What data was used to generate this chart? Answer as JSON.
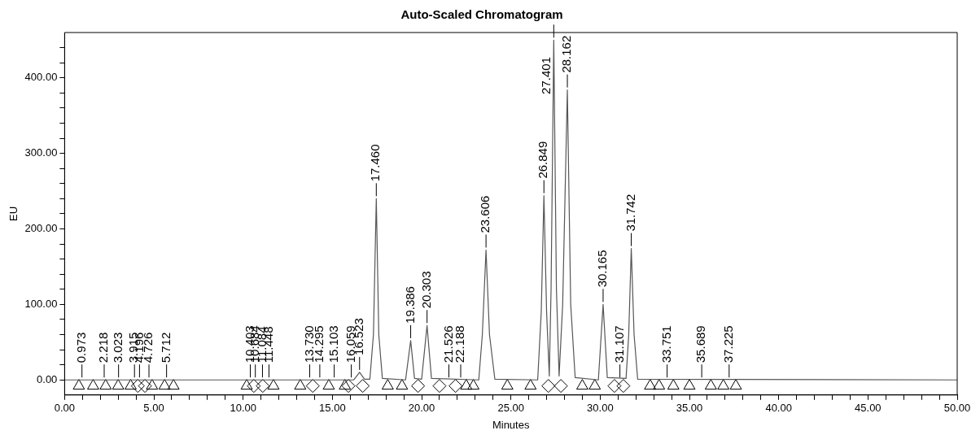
{
  "chart_data": {
    "type": "line",
    "title": "Auto-Scaled Chromatogram",
    "xlabel": "Minutes",
    "ylabel": "EU",
    "xlim": [
      0,
      50
    ],
    "ylim": [
      -20,
      460
    ],
    "xticks": [
      {
        "value": 0,
        "label": "0.00"
      },
      {
        "value": 1,
        "label": null
      },
      {
        "value": 2,
        "label": null
      },
      {
        "value": 3,
        "label": null
      },
      {
        "value": 4,
        "label": null
      },
      {
        "value": 5,
        "label": "5.00"
      },
      {
        "value": 6,
        "label": null
      },
      {
        "value": 7,
        "label": null
      },
      {
        "value": 8,
        "label": null
      },
      {
        "value": 9,
        "label": null
      },
      {
        "value": 10,
        "label": "10.00"
      },
      {
        "value": 11,
        "label": null
      },
      {
        "value": 12,
        "label": null
      },
      {
        "value": 13,
        "label": null
      },
      {
        "value": 14,
        "label": null
      },
      {
        "value": 15,
        "label": "15.00"
      },
      {
        "value": 16,
        "label": null
      },
      {
        "value": 17,
        "label": null
      },
      {
        "value": 18,
        "label": null
      },
      {
        "value": 19,
        "label": null
      },
      {
        "value": 20,
        "label": "20.00"
      },
      {
        "value": 21,
        "label": null
      },
      {
        "value": 22,
        "label": null
      },
      {
        "value": 23,
        "label": null
      },
      {
        "value": 24,
        "label": null
      },
      {
        "value": 25,
        "label": "25.00"
      },
      {
        "value": 26,
        "label": null
      },
      {
        "value": 27,
        "label": null
      },
      {
        "value": 28,
        "label": null
      },
      {
        "value": 29,
        "label": null
      },
      {
        "value": 30,
        "label": "30.00"
      },
      {
        "value": 31,
        "label": null
      },
      {
        "value": 32,
        "label": null
      },
      {
        "value": 33,
        "label": null
      },
      {
        "value": 34,
        "label": null
      },
      {
        "value": 35,
        "label": "35.00"
      },
      {
        "value": 36,
        "label": null
      },
      {
        "value": 37,
        "label": null
      },
      {
        "value": 38,
        "label": null
      },
      {
        "value": 39,
        "label": null
      },
      {
        "value": 40,
        "label": "40.00"
      },
      {
        "value": 41,
        "label": null
      },
      {
        "value": 42,
        "label": null
      },
      {
        "value": 43,
        "label": null
      },
      {
        "value": 44,
        "label": null
      },
      {
        "value": 45,
        "label": "45.00"
      },
      {
        "value": 46,
        "label": null
      },
      {
        "value": 47,
        "label": null
      },
      {
        "value": 48,
        "label": null
      },
      {
        "value": 49,
        "label": null
      },
      {
        "value": 50,
        "label": "50.00"
      }
    ],
    "yticks": [
      {
        "value": 0,
        "label": "0.00"
      },
      {
        "value": 20,
        "label": null
      },
      {
        "value": 40,
        "label": null
      },
      {
        "value": 60,
        "label": null
      },
      {
        "value": 80,
        "label": null
      },
      {
        "value": 100,
        "label": "100.00"
      },
      {
        "value": 120,
        "label": null
      },
      {
        "value": 140,
        "label": null
      },
      {
        "value": 160,
        "label": null
      },
      {
        "value": 180,
        "label": null
      },
      {
        "value": 200,
        "label": "200.00"
      },
      {
        "value": 220,
        "label": null
      },
      {
        "value": 240,
        "label": null
      },
      {
        "value": 260,
        "label": null
      },
      {
        "value": 280,
        "label": null
      },
      {
        "value": 300,
        "label": "300.00"
      },
      {
        "value": 320,
        "label": null
      },
      {
        "value": 340,
        "label": null
      },
      {
        "value": 360,
        "label": null
      },
      {
        "value": 380,
        "label": null
      },
      {
        "value": 400,
        "label": "400.00"
      },
      {
        "value": 420,
        "label": null
      },
      {
        "value": 440,
        "label": null
      }
    ],
    "grid": false,
    "legend": false,
    "series": [
      {
        "color": "#555555",
        "marker": "none",
        "x": [
          0,
          16.2,
          16.523,
          16.8,
          17.1,
          17.3,
          17.46,
          17.6,
          17.8,
          19.1,
          19.386,
          19.6,
          20.0,
          20.303,
          20.55,
          23.2,
          23.4,
          23.606,
          23.8,
          24.1,
          26.5,
          26.7,
          26.849,
          27.0,
          27.15,
          27.25,
          27.401,
          27.55,
          27.7,
          27.9,
          28.162,
          28.35,
          28.6,
          29.9,
          30.165,
          30.4,
          31.45,
          31.6,
          31.742,
          31.9,
          32.1,
          50
        ],
        "values": [
          0,
          0,
          10,
          1,
          1,
          60,
          240,
          60,
          2,
          0,
          52,
          2,
          1,
          72,
          2,
          0,
          60,
          172,
          60,
          1,
          0,
          90,
          244,
          90,
          5,
          120,
          450,
          120,
          5,
          100,
          384,
          100,
          3,
          0,
          100,
          3,
          2,
          60,
          174,
          60,
          1,
          0
        ]
      },
      {
        "type": "scatter",
        "color": "#000000",
        "marker": "triangle",
        "x": [
          0.8,
          1.6,
          2.3,
          3.0,
          3.7,
          4.9,
          5.6,
          6.1,
          10.2,
          11.7,
          13.2,
          14.8,
          15.7,
          18.1,
          18.9,
          22.5,
          22.9,
          24.8,
          26.1,
          29.0,
          29.7,
          32.8,
          33.3,
          34.1,
          35.0,
          36.2,
          36.9,
          37.6
        ],
        "values": [
          -8,
          -8,
          -8,
          -8,
          -8,
          -8,
          -8,
          -8,
          -8,
          -8,
          -8,
          -8,
          -8,
          -8,
          -8,
          -8,
          -8,
          -8,
          -8,
          -8,
          -8,
          -8,
          -8,
          -8,
          -8,
          -8,
          -8,
          -8
        ]
      },
      {
        "type": "scatter",
        "color": "#000000",
        "marker": "diamond",
        "x": [
          4.1,
          4.5,
          10.6,
          11.1,
          13.9,
          15.9,
          16.7,
          19.8,
          21.0,
          21.9,
          27.1,
          27.8,
          30.8,
          31.3
        ],
        "values": [
          -8,
          -8,
          -8,
          -8,
          -8,
          -8,
          -8,
          -8,
          -8,
          -8,
          -8,
          -8,
          -8,
          -8
        ]
      }
    ],
    "annotations": [
      {
        "text": "0.973",
        "x": 0.973,
        "y": 0
      },
      {
        "text": "2.218",
        "x": 2.218,
        "y": 0
      },
      {
        "text": "3.023",
        "x": 3.023,
        "y": 0
      },
      {
        "text": "3.915",
        "x": 3.915,
        "y": 0
      },
      {
        "text": "4.196",
        "x": 4.196,
        "y": 0
      },
      {
        "text": "4.726",
        "x": 4.726,
        "y": 0
      },
      {
        "text": "5.712",
        "x": 5.712,
        "y": 0
      },
      {
        "text": "10.403",
        "x": 10.403,
        "y": 0
      },
      {
        "text": "10.684",
        "x": 10.684,
        "y": 0
      },
      {
        "text": "11.084",
        "x": 11.084,
        "y": 0
      },
      {
        "text": "11.448",
        "x": 11.448,
        "y": 0
      },
      {
        "text": "13.730",
        "x": 13.73,
        "y": 0
      },
      {
        "text": "14.295",
        "x": 14.295,
        "y": 0
      },
      {
        "text": "15.103",
        "x": 15.103,
        "y": 0
      },
      {
        "text": "16.059",
        "x": 16.059,
        "y": 0
      },
      {
        "text": "16.523",
        "x": 16.523,
        "y": 10
      },
      {
        "text": "17.460",
        "x": 17.46,
        "y": 240
      },
      {
        "text": "19.386",
        "x": 19.386,
        "y": 52
      },
      {
        "text": "20.303",
        "x": 20.303,
        "y": 72
      },
      {
        "text": "21.526",
        "x": 21.526,
        "y": 0
      },
      {
        "text": "22.188",
        "x": 22.188,
        "y": 0
      },
      {
        "text": "23.606",
        "x": 23.606,
        "y": 172
      },
      {
        "text": "26.849",
        "x": 26.849,
        "y": 244
      },
      {
        "text": "27.401",
        "x": 27.401,
        "y": 450
      },
      {
        "text": "28.162",
        "x": 28.162,
        "y": 384
      },
      {
        "text": "30.165",
        "x": 30.165,
        "y": 100
      },
      {
        "text": "31.107",
        "x": 31.107,
        "y": 0
      },
      {
        "text": "31.742",
        "x": 31.742,
        "y": 174
      },
      {
        "text": "33.751",
        "x": 33.751,
        "y": 0
      },
      {
        "text": "35.689",
        "x": 35.689,
        "y": 0
      },
      {
        "text": "37.225",
        "x": 37.225,
        "y": 0
      }
    ]
  }
}
